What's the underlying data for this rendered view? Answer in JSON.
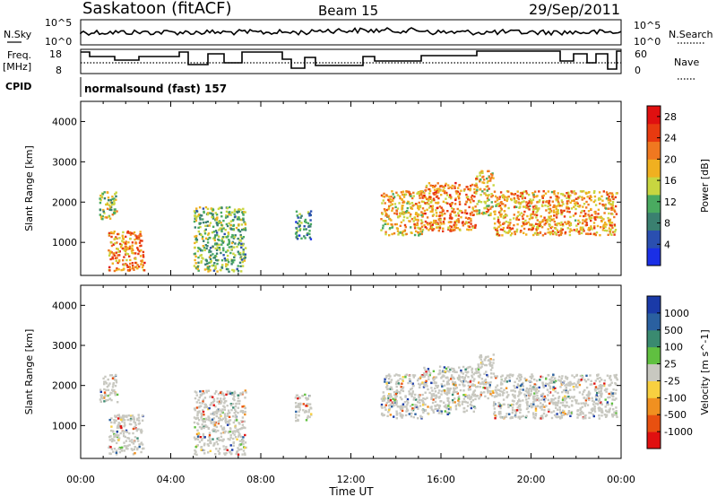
{
  "header": {
    "station": "Saskatoon (fitACF)",
    "beam": "Beam 15",
    "date": "29/Sep/2011"
  },
  "strip_labels": {
    "nsky": "N.Sky",
    "nsearch": "N.Search",
    "freq": "Freq.",
    "freq_unit": "[MHz]",
    "nave": "Nave",
    "cpid": "CPID",
    "cpid_value": "normalsound (fast) 157",
    "nsky_ticks": [
      "10^5",
      "10^0"
    ],
    "nsearch_ticks": [
      "10^5",
      "10^0"
    ],
    "freq_ticks": [
      "18",
      "8"
    ],
    "nave_ticks": [
      "60",
      "0"
    ]
  },
  "colors": {
    "power_scale": [
      "#1a2fe6",
      "#2a4fb0",
      "#3a8070",
      "#4aaa60",
      "#c8d640",
      "#f0b020",
      "#f07820",
      "#e83a10",
      "#e01010"
    ],
    "velocity_scale": [
      "#1a3aa8",
      "#2a60a0",
      "#3a8a70",
      "#60c040",
      "#c8c8c0",
      "#f8d040",
      "#f09020",
      "#e85010",
      "#e01010"
    ],
    "ground_scatter": "#c8c8c0"
  },
  "chart_data": [
    {
      "type": "heatmap",
      "name": "power",
      "xlabel": "",
      "ylabel": "Slant Range [km]",
      "x_ticks": [
        "00:00",
        "04:00",
        "08:00",
        "12:00",
        "16:00",
        "20:00",
        "00:00"
      ],
      "xlim_hours": [
        0,
        24
      ],
      "ylim": [
        180,
        4500
      ],
      "y_ticks": [
        1000,
        2000,
        3000,
        4000
      ],
      "colorbar_label": "Power [dB]",
      "colorbar_ticks": [
        4,
        8,
        12,
        16,
        20,
        24,
        28
      ],
      "colorbar_range": [
        0,
        30
      ],
      "patches": [
        {
          "t0": 0.8,
          "t1": 1.6,
          "r0": 1600,
          "r1": 2300,
          "val": 14
        },
        {
          "t0": 1.2,
          "t1": 2.8,
          "r0": 300,
          "r1": 1300,
          "val": 22
        },
        {
          "t0": 5.0,
          "t1": 7.3,
          "r0": 300,
          "r1": 1900,
          "val": 12
        },
        {
          "t0": 9.5,
          "t1": 10.2,
          "r0": 1100,
          "r1": 1800,
          "val": 8
        },
        {
          "t0": 13.3,
          "t1": 15.2,
          "r0": 1200,
          "r1": 2300,
          "val": 18
        },
        {
          "t0": 15.2,
          "t1": 17.5,
          "r0": 1300,
          "r1": 2500,
          "val": 22
        },
        {
          "t0": 17.5,
          "t1": 18.3,
          "r0": 1700,
          "r1": 2800,
          "val": 18
        },
        {
          "t0": 18.3,
          "t1": 23.8,
          "r0": 1200,
          "r1": 2300,
          "val": 20
        }
      ]
    },
    {
      "type": "heatmap",
      "name": "velocity",
      "xlabel": "Time UT",
      "ylabel": "Slant Range [km]",
      "x_ticks": [
        "00:00",
        "04:00",
        "08:00",
        "12:00",
        "16:00",
        "20:00",
        "00:00"
      ],
      "xlim_hours": [
        0,
        24
      ],
      "ylim": [
        180,
        4500
      ],
      "y_ticks": [
        1000,
        2000,
        3000,
        4000
      ],
      "colorbar_label": "Velocity [m s^-1]",
      "colorbar_ticks": [
        "1000",
        "500",
        "100",
        "25",
        "-25",
        "-100",
        "-500",
        "-1000"
      ],
      "patches": [
        {
          "t0": 0.8,
          "t1": 1.6,
          "r0": 1600,
          "r1": 2300,
          "val": 0
        },
        {
          "t0": 1.2,
          "t1": 2.8,
          "r0": 300,
          "r1": 1300,
          "val": 0
        },
        {
          "t0": 5.0,
          "t1": 7.3,
          "r0": 300,
          "r1": 1900,
          "val": 0
        },
        {
          "t0": 9.5,
          "t1": 10.2,
          "r0": 1100,
          "r1": 1800,
          "val": 0
        },
        {
          "t0": 13.3,
          "t1": 15.2,
          "r0": 1200,
          "r1": 2300,
          "val": 0
        },
        {
          "t0": 15.2,
          "t1": 17.5,
          "r0": 1300,
          "r1": 2500,
          "val": 0
        },
        {
          "t0": 17.5,
          "t1": 18.3,
          "r0": 1700,
          "r1": 2800,
          "val": 0
        },
        {
          "t0": 18.3,
          "t1": 23.8,
          "r0": 1200,
          "r1": 2300,
          "val": 0
        }
      ]
    }
  ]
}
